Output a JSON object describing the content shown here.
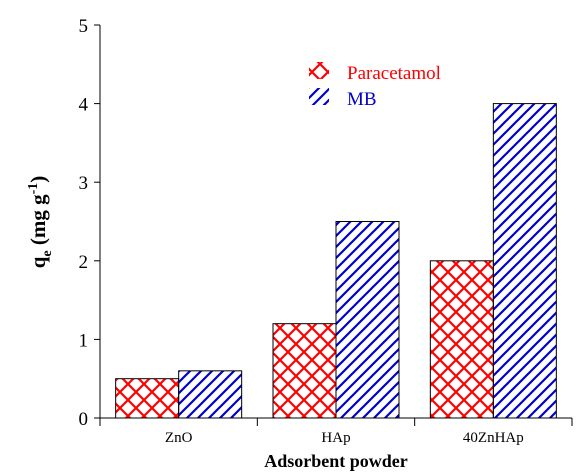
{
  "chart_data": {
    "type": "bar",
    "categories": [
      "ZnO",
      "HAp",
      "40ZnHAp"
    ],
    "series": [
      {
        "name": "Paracetamol",
        "values": [
          0.5,
          1.2,
          2.0
        ],
        "color": "#ff0000",
        "pattern": "crosshatch"
      },
      {
        "name": "MB",
        "values": [
          0.6,
          2.5,
          4.0
        ],
        "color": "#0000cc",
        "pattern": "diagonal"
      }
    ],
    "xlabel": "Adsorbent powder",
    "ylabel": {
      "main": "q",
      "sub": "e",
      "rest": " (mg g",
      "sup": "-1",
      "close": ")"
    },
    "ylim": [
      0,
      5
    ],
    "yticks": [
      0,
      1,
      2,
      3,
      4,
      5
    ],
    "legend_position": "top-center",
    "grid": false
  }
}
